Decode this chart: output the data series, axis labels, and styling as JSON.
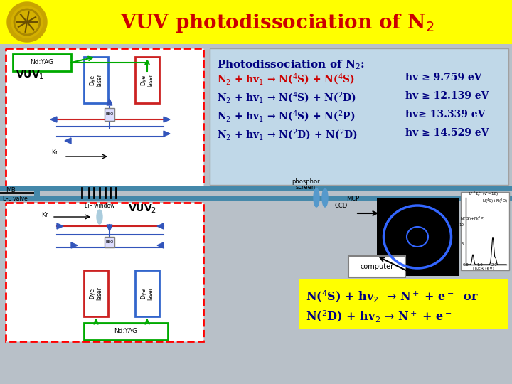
{
  "title": "VUV photodissociation of N$_2$",
  "title_color": "#CC0000",
  "title_bg": "#FFFF00",
  "bg_color": "#C8C8C8",
  "eq_box_color": "#C0D8E8",
  "eq_header": "Photodissociation of N$_2$:",
  "eq_header_color": "#000080",
  "equations": [
    {
      "lhs": "N$_2$ + hv$_1$ → N($^4$S) + N($^4$S)",
      "rhs": "hv ≥ 9.759 eV",
      "lhs_color": "#CC0000",
      "rhs_color": "#000080"
    },
    {
      "lhs": "N$_2$ + hv$_1$ → N($^4$S) + N($^2$D)",
      "rhs": "hv ≥ 12.139 eV",
      "lhs_color": "#000080",
      "rhs_color": "#000080"
    },
    {
      "lhs": "N$_2$ + hv$_1$ → N($^4$S) + N($^2$P)",
      "rhs": "hv≥ 13.339 eV",
      "lhs_color": "#000080",
      "rhs_color": "#000080"
    },
    {
      "lhs": "N$_2$ + hv$_1$ → N($^2$D) + N($^2$D)",
      "rhs": "hv ≥ 14.529 eV",
      "lhs_color": "#000080",
      "rhs_color": "#000080"
    }
  ],
  "bottom_line1": "N($^4$S) + hv$_2$  → N$^+$ + e$^-$  or",
  "bottom_line2": "N($^2$D) + hv$_2$ → N$^+$ + e$^-$",
  "bottom_color": "#000080",
  "bottom_bg": "#FFFF00"
}
